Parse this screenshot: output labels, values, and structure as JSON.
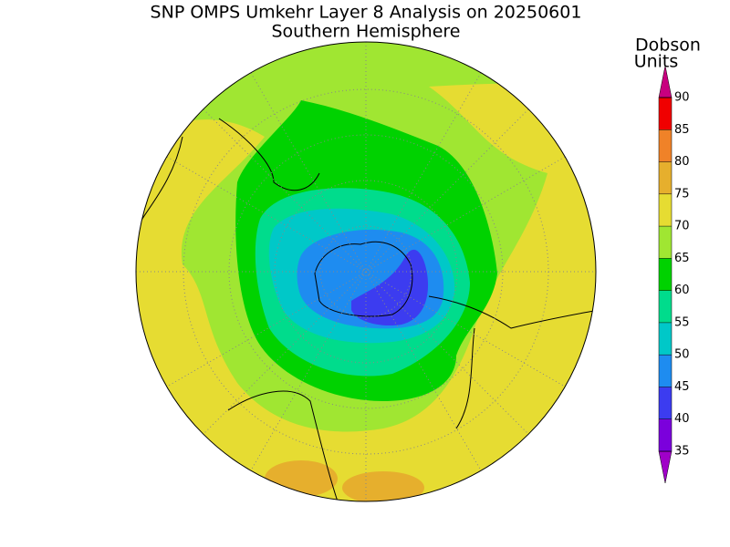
{
  "title": "SNP OMPS Umkehr Layer 8 Analysis on 20250601",
  "subtitle": "Southern Hemisphere",
  "colorbar": {
    "label_line1": "Dobson",
    "label_line2": "Units",
    "ticks": [
      35,
      40,
      45,
      50,
      55,
      60,
      65,
      70,
      75,
      80,
      85,
      90
    ],
    "colors": [
      "#a000c8",
      "#7b00dc",
      "#3c3cf0",
      "#1e8cf0",
      "#00c8c8",
      "#00dc8c",
      "#00d200",
      "#a0e632",
      "#e6dc32",
      "#e6af2d",
      "#f08228",
      "#f00000",
      "#c8007f"
    ]
  }
}
